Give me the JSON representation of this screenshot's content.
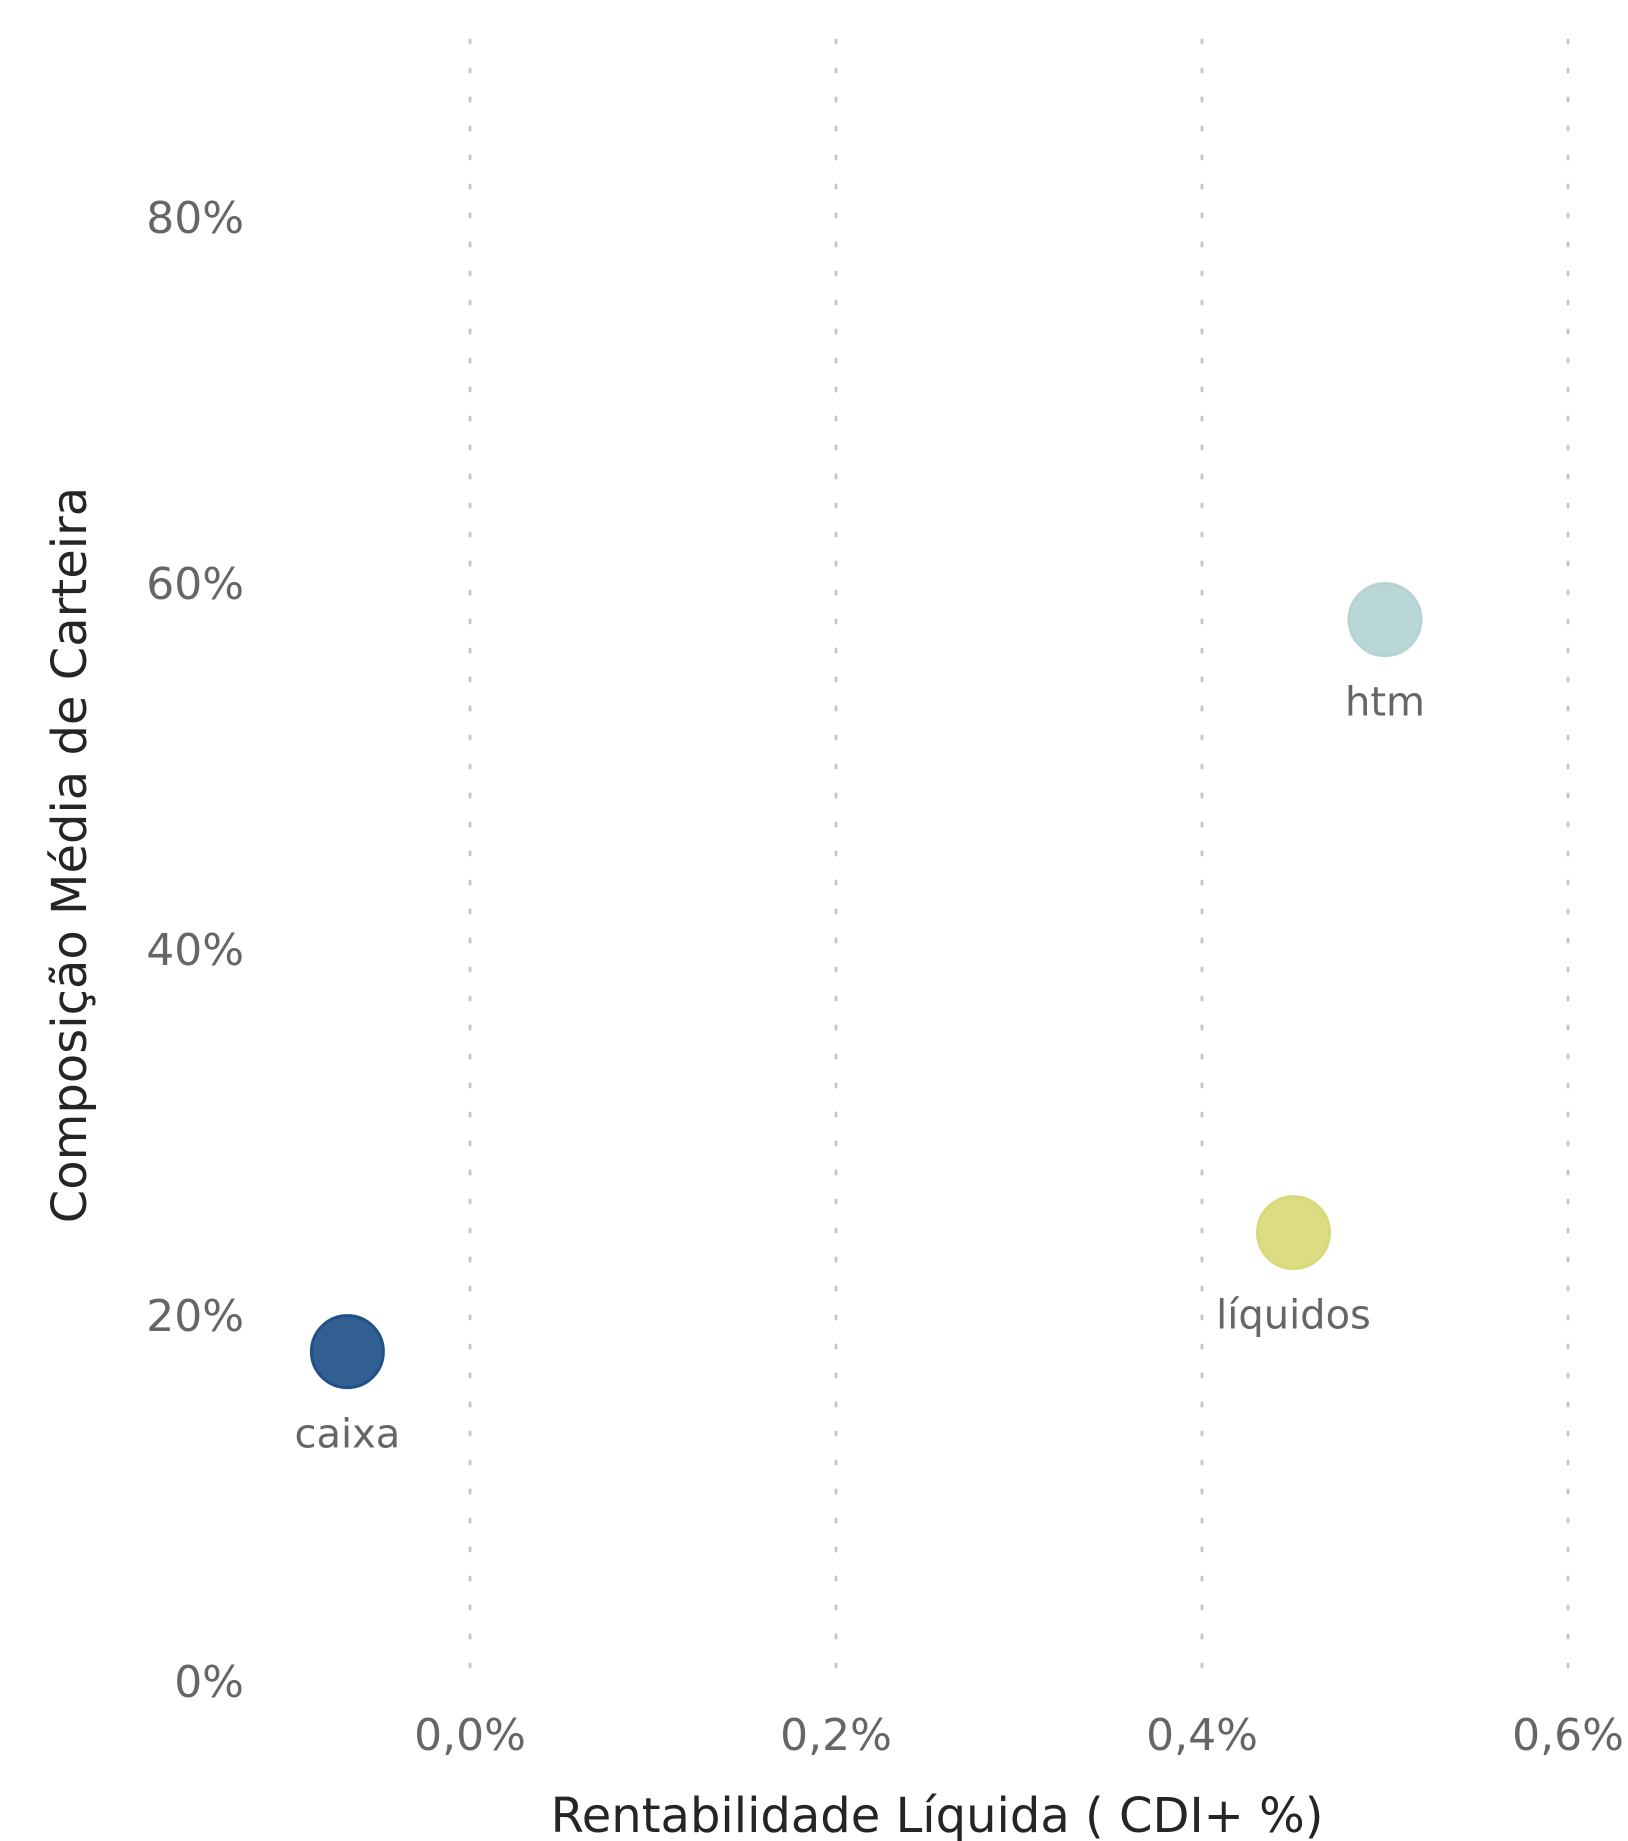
{
  "chart_data": {
    "type": "scatter",
    "xlabel": "Rentabilidade Líquida ( CDI+ %)",
    "ylabel": "Composição Média de Carteira",
    "xlim": [
      -0.0008,
      0.0063
    ],
    "ylim": [
      0,
      0.9
    ],
    "x_ticks": [
      {
        "value": 0.0,
        "label": "0,0%"
      },
      {
        "value": 0.002,
        "label": "0,2%"
      },
      {
        "value": 0.004,
        "label": "0,4%"
      },
      {
        "value": 0.006,
        "label": "0,6%"
      }
    ],
    "y_ticks": [
      {
        "value": 0.0,
        "label": "0%"
      },
      {
        "value": 0.2,
        "label": "20%"
      },
      {
        "value": 0.4,
        "label": "40%"
      },
      {
        "value": 0.6,
        "label": "60%"
      },
      {
        "value": 0.8,
        "label": "80%"
      }
    ],
    "grid": {
      "x": true,
      "y": false
    },
    "points": [
      {
        "label": "caixa",
        "x": -0.00067,
        "y": 0.18,
        "color": "#1f5188"
      },
      {
        "label": "htm",
        "x": 0.005,
        "y": 0.58,
        "color": "#b3d4d2"
      },
      {
        "label": "líquidos",
        "x": 0.0045,
        "y": 0.245,
        "color": "#d9d97a"
      }
    ]
  }
}
